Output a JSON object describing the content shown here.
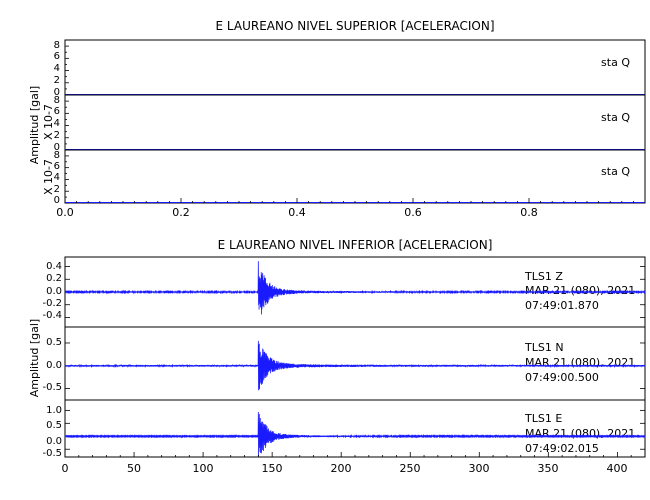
{
  "top": {
    "title": "E LAUREANO NIVEL SUPERIOR [ACELERACION]",
    "ylabel": "Amplitud [gal]",
    "xticks": [
      "0.0",
      "0.2",
      "0.4",
      "0.6",
      "0.8"
    ],
    "panels": [
      {
        "scale": "",
        "yticks": [
          "8",
          "6",
          "4",
          "2",
          "0"
        ],
        "label": "sta   Q"
      },
      {
        "scale": "X 10-7",
        "yticks": [
          "8",
          "6",
          "4",
          "2",
          "0"
        ],
        "label": "sta   Q"
      },
      {
        "scale": "X 10-7",
        "yticks": [
          "8",
          "6",
          "4",
          "2",
          "0"
        ],
        "label": "sta   Q"
      }
    ]
  },
  "bottom": {
    "title": "E LAUREANO NIVEL INFERIOR [ACELERACION]",
    "ylabel": "Amplitud [gal]",
    "xticks": [
      "0",
      "50",
      "100",
      "150",
      "200",
      "250",
      "300",
      "350",
      "400"
    ],
    "panels": [
      {
        "yticks": [
          "0.4",
          "0.2",
          "0.0",
          "-0.2",
          "-0.4"
        ],
        "station": "TLS1   Z",
        "date": "MAR 21 (080), 2021",
        "time": "07:49:01.870"
      },
      {
        "yticks": [
          "0.5",
          "0.0",
          "-0.5"
        ],
        "station": "TLS1   N",
        "date": "MAR 21 (080), 2021",
        "time": "07:49:00.500"
      },
      {
        "yticks": [
          "1.0",
          "0.5",
          "0.0",
          "-0.5"
        ],
        "station": "TLS1   E",
        "date": "MAR 21 (080), 2021",
        "time": "07:49:02.015"
      }
    ]
  },
  "chart_data": [
    {
      "type": "line",
      "title": "E LAUREANO NIVEL SUPERIOR [ACELERACION]",
      "ylabel": "Amplitud [gal]",
      "xlim": [
        0,
        1
      ],
      "xticks": [
        0.0,
        0.2,
        0.4,
        0.6,
        0.8
      ],
      "series": [
        {
          "name": "sta Q",
          "ylim": [
            0,
            9
          ],
          "x": [
            0,
            1
          ],
          "values": [
            0,
            0
          ]
        },
        {
          "name": "sta Q",
          "ylim": [
            0,
            9
          ],
          "x": [
            0,
            1
          ],
          "values": [
            0,
            0
          ]
        },
        {
          "name": "sta Q",
          "ylim": [
            0,
            9
          ],
          "x": [
            0,
            1
          ],
          "values": [
            0,
            0
          ]
        }
      ]
    },
    {
      "type": "line",
      "title": "E LAUREANO NIVEL INFERIOR [ACELERACION]",
      "ylabel": "Amplitud [gal]",
      "xlim": [
        0,
        420
      ],
      "xticks": [
        0,
        50,
        100,
        150,
        200,
        250,
        300,
        350,
        400
      ],
      "event_onset": 140,
      "series": [
        {
          "name": "TLS1 Z",
          "ylim": [
            -0.55,
            0.55
          ],
          "peak": 0.47,
          "noise": 0.01
        },
        {
          "name": "TLS1 N",
          "ylim": [
            -0.75,
            0.85
          ],
          "peak": 0.6,
          "noise": 0.02
        },
        {
          "name": "TLS1 E",
          "ylim": [
            -0.8,
            1.4
          ],
          "peak": 0.95,
          "noise": 0.02
        }
      ]
    }
  ],
  "colors": {
    "trace": "#1a1aff",
    "axis": "#000000"
  }
}
